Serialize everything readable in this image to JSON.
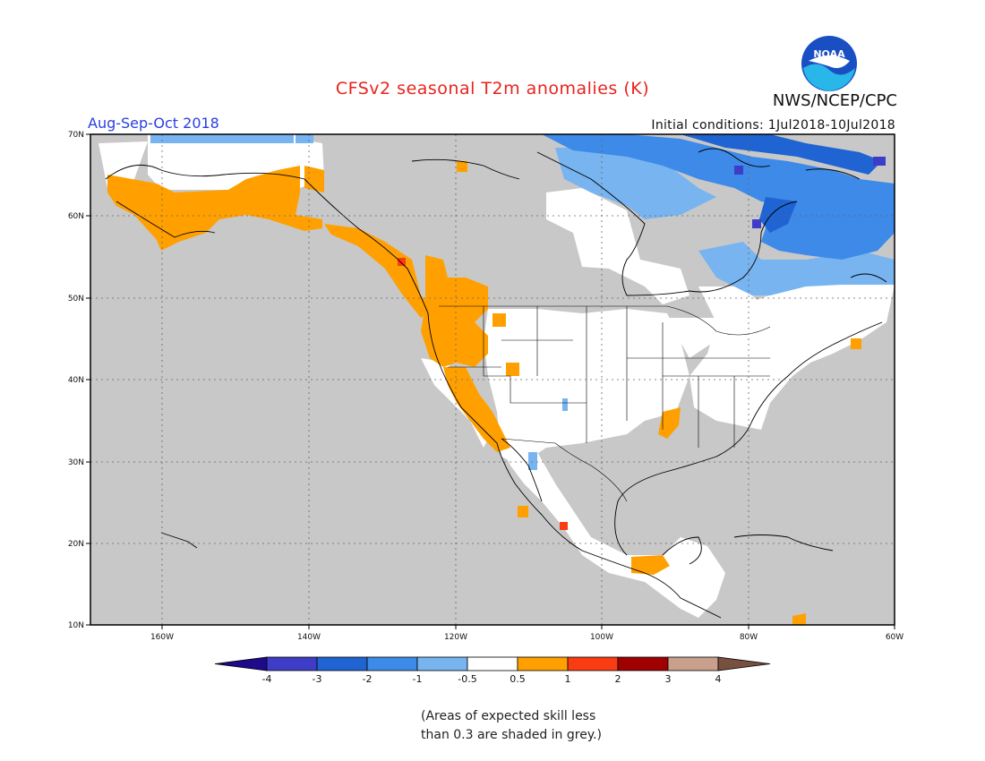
{
  "title": "CFSv2 seasonal T2m anomalies (K)",
  "agency": "NWS/NCEP/CPC",
  "season": "Aug-Sep-Oct 2018",
  "initial_conditions": "Initial conditions: 1Jul2018-10Jul2018",
  "logo_text": "NOAA",
  "lat_labels": [
    "70N",
    "60N",
    "50N",
    "40N",
    "30N",
    "20N",
    "10N"
  ],
  "lon_labels": [
    "160W",
    "140W",
    "120W",
    "100W",
    "80W",
    "60W"
  ],
  "colorbar": {
    "labels": [
      "-4",
      "-3",
      "-2",
      "-1",
      "-0.5",
      "0.5",
      "1",
      "2",
      "3",
      "4"
    ],
    "colors": [
      "#1f0a8c",
      "#3d3dc8",
      "#1f64d2",
      "#3d8ae8",
      "#78b4f0",
      "#ffffff",
      "#ffa000",
      "#fa3c12",
      "#a00000",
      "#c8a08c",
      "#785040"
    ]
  },
  "note": [
    "(Areas of expected skill less",
    "than 0.3 are shaded in grey.)"
  ]
}
